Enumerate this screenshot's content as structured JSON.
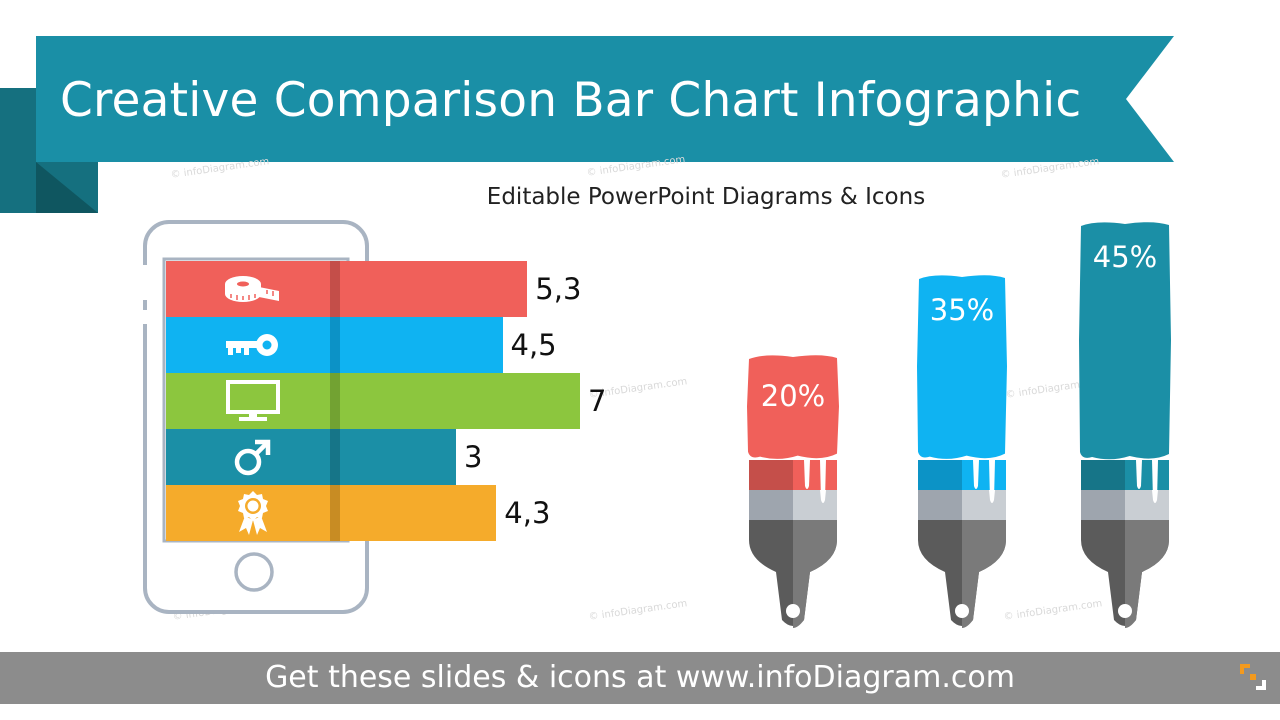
{
  "title": "Creative Comparison Bar Chart Infographic",
  "subtitle": "Editable PowerPoint Diagrams & Icons",
  "watermark": "© infoDiagram.com",
  "footer": {
    "text": "Get these slides & icons at www.infoDiagram.com",
    "logo_icon": "infodiagram-logo-icon"
  },
  "colors": {
    "ribbon": "#1a8fa6",
    "ribbon_fold": "#15707f",
    "red": "#f0605a",
    "blue": "#0fb3f2",
    "green": "#8cc63e",
    "teal": "#1b8fa6",
    "orange": "#f5ab2b",
    "phone_outline": "#a9b4c2",
    "footer": "#8c8c8c"
  },
  "chart_data": [
    {
      "type": "bar",
      "orientation": "horizontal",
      "categories": [
        "measuring-tape-icon",
        "key-icon",
        "monitor-icon",
        "male-symbol-icon",
        "award-ribbon-icon"
      ],
      "value_labels": [
        "5,3",
        "4,5",
        "7",
        "3",
        "4,3"
      ],
      "values": [
        5.3,
        4.5,
        7,
        3,
        4.3
      ],
      "colors": [
        "#f0605a",
        "#0fb3f2",
        "#8cc63e",
        "#1b8fa6",
        "#f5ab2b"
      ],
      "xlim": [
        0,
        7
      ],
      "title": "",
      "xlabel": "",
      "ylabel": ""
    },
    {
      "type": "bar",
      "style": "paint-brush",
      "value_labels": [
        "20%",
        "35%",
        "45%"
      ],
      "values": [
        20,
        35,
        45
      ],
      "colors": [
        "#f0605a",
        "#0fb3f2",
        "#1b8fa6"
      ],
      "ylim": [
        0,
        45
      ],
      "title": "",
      "xlabel": "",
      "ylabel": ""
    }
  ]
}
